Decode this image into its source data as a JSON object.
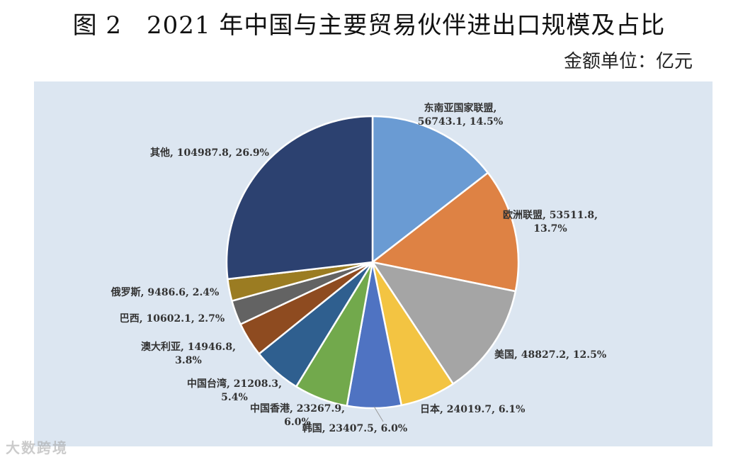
{
  "title": "图 2　2021 年中国与主要贸易伙伴进出口规模及占比",
  "unit_label": "金额单位：亿元",
  "watermark": "大数跨境",
  "chart_data": {
    "type": "pie",
    "title": "图 2　2021 年中国与主要贸易伙伴进出口规模及占比",
    "unit": "亿元",
    "start_angle": "12 o'clock",
    "direction": "clockwise",
    "slices": [
      {
        "name": "东南亚国家联盟",
        "value": 56743.1,
        "percent": "14.5%",
        "color": "#6a9bd3",
        "label_lines": [
          "东南亚国家联盟,",
          "56743.1, 14.5%"
        ]
      },
      {
        "name": "欧洲联盟",
        "value": 53511.8,
        "percent": "13.7%",
        "color": "#de8244",
        "label_lines": [
          "欧洲联盟, 53511.8,",
          "13.7%"
        ]
      },
      {
        "name": "美国",
        "value": 48827.2,
        "percent": "12.5%",
        "color": "#a5a5a5",
        "label_lines": [
          "美国, 48827.2, 12.5%"
        ]
      },
      {
        "name": "日本",
        "value": 24019.7,
        "percent": "6.1%",
        "color": "#f3c442",
        "label_lines": [
          "日本, 24019.7, 6.1%"
        ]
      },
      {
        "name": "韩国",
        "value": 23407.5,
        "percent": "6.0%",
        "color": "#4f73c2",
        "label_lines": [
          "韩国, 23407.5, 6.0%"
        ]
      },
      {
        "name": "中国香港",
        "value": 23267.9,
        "percent": "6.0%",
        "color": "#72a94c",
        "label_lines": [
          "中国香港, 23267.9,",
          "6.0%"
        ]
      },
      {
        "name": "中国台湾",
        "value": 21208.3,
        "percent": "5.4%",
        "color": "#2f5f8f",
        "label_lines": [
          "中国台湾, 21208.3,",
          "5.4%"
        ]
      },
      {
        "name": "澳大利亚",
        "value": 14946.8,
        "percent": "3.8%",
        "color": "#8e4b20",
        "label_lines": [
          "澳大利亚, 14946.8,",
          "3.8%"
        ]
      },
      {
        "name": "巴西",
        "value": 10602.1,
        "percent": "2.7%",
        "color": "#636363",
        "label_lines": [
          "巴西, 10602.1, 2.7%"
        ]
      },
      {
        "name": "俄罗斯",
        "value": 9486.6,
        "percent": "2.4%",
        "color": "#9b7c22",
        "label_lines": [
          "俄罗斯, 9486.6, 2.4%"
        ]
      },
      {
        "name": "其他",
        "value": 104987.8,
        "percent": "26.9%",
        "color": "#2c4170",
        "label_lines": [
          "其他, 104987.8, 26.9%"
        ]
      }
    ]
  }
}
